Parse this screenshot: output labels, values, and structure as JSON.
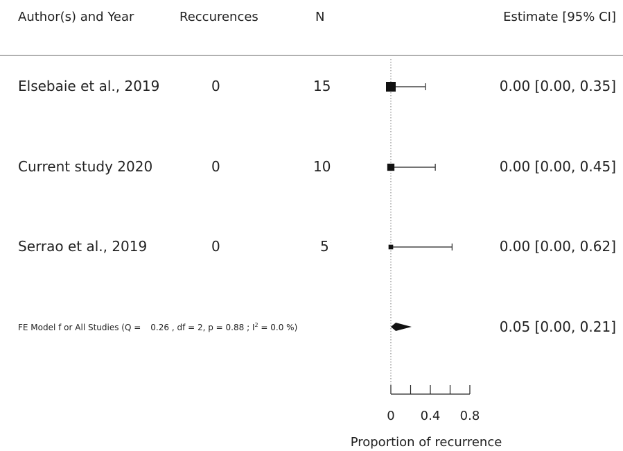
{
  "chart_data": {
    "type": "forest",
    "headers": {
      "study": "Author(s) and Year",
      "events": "Reccurences",
      "n": "N",
      "estimate": "Estimate [95% CI]"
    },
    "studies": [
      {
        "label": "Elsebaie et al., 2019",
        "events": "0",
        "n": "15",
        "estimate": 0.0,
        "ci_low": 0.0,
        "ci_high": 0.35,
        "text": "0.00 [0.00, 0.35]"
      },
      {
        "label": "Current study 2020",
        "events": "0",
        "n": "10",
        "estimate": 0.0,
        "ci_low": 0.0,
        "ci_high": 0.45,
        "text": "0.00 [0.00, 0.45]"
      },
      {
        "label": "Serrao et al., 2019",
        "events": "0",
        "n": "5",
        "estimate": 0.0,
        "ci_low": 0.0,
        "ci_high": 0.62,
        "text": "0.00 [0.00, 0.62]"
      }
    ],
    "summary": {
      "label_prefix": "FE Model f or All Studies (Q =",
      "label_stats": "0.26 , df = 2, p = 0.88 ; I",
      "label_sup": "2",
      "label_end": " = 0.0 %)",
      "estimate": 0.05,
      "ci_low": 0.0,
      "ci_high": 0.21,
      "text": "0.05 [0.00, 0.21]"
    },
    "xaxis": {
      "label": "Proportion of recurrence",
      "tick_labels": [
        "0",
        "0.4",
        "0.8"
      ],
      "labeled_ticks": [
        0,
        0.4,
        0.8
      ],
      "all_ticks": [
        0,
        0.2,
        0.4,
        0.6,
        0.8
      ],
      "range": [
        0,
        0.8
      ],
      "reference_line": 0
    }
  }
}
